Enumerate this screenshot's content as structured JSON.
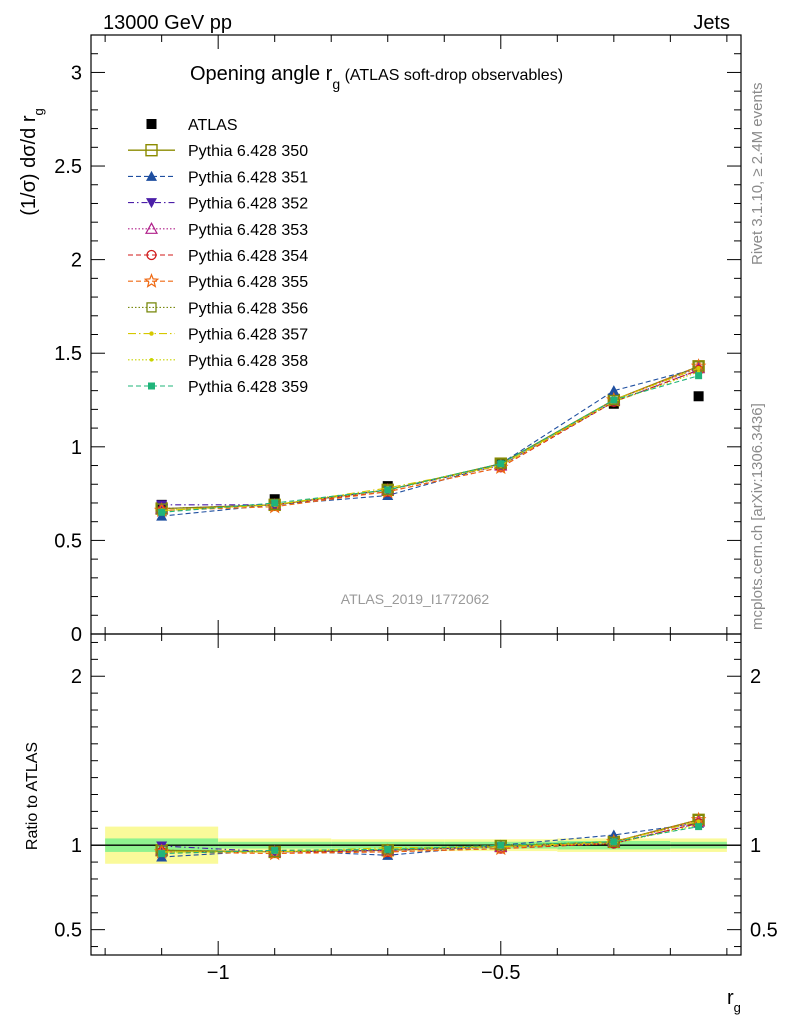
{
  "header": {
    "left": "13000 GeV pp",
    "right": "Jets"
  },
  "title": {
    "main": "Opening angle r",
    "sub": "g",
    "suffix": " (ATLAS soft-drop observables)"
  },
  "side_labels": {
    "rivet": "Rivet 3.1.10, ≥ 2.4M events",
    "mcplots": "mcplots.cern.ch [arXiv:1306.3436]"
  },
  "watermark": "ATLAS_2019_I1772062",
  "colors": {
    "ATLAS": "#000000",
    "350": "#8b8b00",
    "351": "#1f4fa0",
    "352": "#4b1fa8",
    "353": "#b0208a",
    "354": "#d01a1a",
    "355": "#ef6a14",
    "356": "#7a8a10",
    "357": "#d6c800",
    "358": "#c9d400",
    "359": "#1fb47a",
    "band_inner": "#8ff28f",
    "band_outer": "#fafa9a"
  },
  "chart_data": [
    {
      "type": "scatter",
      "panel": "main",
      "ylabel": "(1/σ) dσ/d r",
      "ylabel_sub": "g",
      "xlim": [
        -1.225,
        -0.075
      ],
      "ylim": [
        0,
        3.2
      ],
      "yticks": [
        0,
        0.5,
        1,
        1.5,
        2,
        2.5,
        3
      ],
      "ytick_labels": [
        "0",
        "0.5",
        "1",
        "1.5",
        "2",
        "2.5",
        "3"
      ],
      "x": [
        -1.1,
        -0.9,
        -0.7,
        -0.5,
        -0.3,
        -0.15
      ],
      "series": [
        {
          "name": "ATLAS",
          "values": [
            0.69,
            0.72,
            0.79,
            0.91,
            1.23,
            1.27
          ]
        },
        {
          "name": "Pythia 6.428 350",
          "values": [
            0.67,
            0.69,
            0.77,
            0.91,
            1.25,
            1.43
          ]
        },
        {
          "name": "Pythia 6.428 351",
          "values": [
            0.63,
            0.69,
            0.74,
            0.91,
            1.3,
            1.42
          ]
        },
        {
          "name": "Pythia 6.428 352",
          "values": [
            0.69,
            0.69,
            0.77,
            0.9,
            1.24,
            1.41
          ]
        },
        {
          "name": "Pythia 6.428 353",
          "values": [
            0.67,
            0.69,
            0.77,
            0.9,
            1.25,
            1.42
          ]
        },
        {
          "name": "Pythia 6.428 354",
          "values": [
            0.66,
            0.69,
            0.76,
            0.89,
            1.24,
            1.41
          ]
        },
        {
          "name": "Pythia 6.428 355",
          "values": [
            0.66,
            0.68,
            0.76,
            0.89,
            1.25,
            1.43
          ]
        },
        {
          "name": "Pythia 6.428 356",
          "values": [
            0.67,
            0.69,
            0.77,
            0.91,
            1.25,
            1.43
          ]
        },
        {
          "name": "Pythia 6.428 357",
          "values": [
            0.66,
            0.69,
            0.78,
            0.9,
            1.25,
            1.42
          ]
        },
        {
          "name": "Pythia 6.428 358",
          "values": [
            0.66,
            0.69,
            0.77,
            0.9,
            1.24,
            1.4
          ]
        },
        {
          "name": "Pythia 6.428 359",
          "values": [
            0.65,
            0.7,
            0.77,
            0.91,
            1.25,
            1.38
          ]
        }
      ]
    },
    {
      "type": "scatter",
      "panel": "ratio",
      "ylabel": "Ratio to ATLAS",
      "xlabel": "r",
      "xlabel_sub": "g",
      "xlim": [
        -1.225,
        -0.075
      ],
      "ylim": [
        0.35,
        2.25
      ],
      "xticks": [
        -1,
        -0.5
      ],
      "xtick_labels": [
        "−1",
        "−0.5"
      ],
      "yticks": [
        0.5,
        1,
        2
      ],
      "ytick_labels": [
        "0.5",
        "1",
        "2"
      ],
      "band_edges": [
        -1.2,
        -1.0,
        -0.8,
        -0.6,
        -0.4,
        -0.2,
        -0.1
      ],
      "band_inner": [
        0.04,
        0.02,
        0.02,
        0.02,
        0.025,
        0.02
      ],
      "band_outer": [
        0.11,
        0.04,
        0.035,
        0.035,
        0.04,
        0.04
      ],
      "x": [
        -1.1,
        -0.9,
        -0.7,
        -0.5,
        -0.3,
        -0.15
      ],
      "series": [
        {
          "name": "Pythia 6.428 350",
          "values": [
            0.97,
            0.96,
            0.97,
            0.995,
            1.02,
            1.15
          ]
        },
        {
          "name": "Pythia 6.428 351",
          "values": [
            0.93,
            0.97,
            0.94,
            1.0,
            1.06,
            1.13
          ]
        },
        {
          "name": "Pythia 6.428 352",
          "values": [
            0.995,
            0.96,
            0.97,
            0.99,
            1.01,
            1.13
          ]
        },
        {
          "name": "Pythia 6.428 353",
          "values": [
            0.97,
            0.96,
            0.97,
            0.99,
            1.02,
            1.14
          ]
        },
        {
          "name": "Pythia 6.428 354",
          "values": [
            0.96,
            0.96,
            0.96,
            0.98,
            1.01,
            1.13
          ]
        },
        {
          "name": "Pythia 6.428 355",
          "values": [
            0.96,
            0.95,
            0.96,
            0.98,
            1.02,
            1.15
          ]
        },
        {
          "name": "Pythia 6.428 356",
          "values": [
            0.97,
            0.96,
            0.975,
            1.0,
            1.02,
            1.15
          ]
        },
        {
          "name": "Pythia 6.428 357",
          "values": [
            0.96,
            0.96,
            0.985,
            0.99,
            1.02,
            1.14
          ]
        },
        {
          "name": "Pythia 6.428 358",
          "values": [
            0.96,
            0.96,
            0.975,
            0.99,
            1.01,
            1.12
          ]
        },
        {
          "name": "Pythia 6.428 359",
          "values": [
            0.95,
            0.97,
            0.975,
            1.0,
            1.02,
            1.11
          ]
        }
      ]
    }
  ],
  "legend": {
    "placement": "top-left",
    "entries": [
      "ATLAS",
      "Pythia 6.428 350",
      "Pythia 6.428 351",
      "Pythia 6.428 352",
      "Pythia 6.428 353",
      "Pythia 6.428 354",
      "Pythia 6.428 355",
      "Pythia 6.428 356",
      "Pythia 6.428 357",
      "Pythia 6.428 358",
      "Pythia 6.428 359"
    ]
  }
}
